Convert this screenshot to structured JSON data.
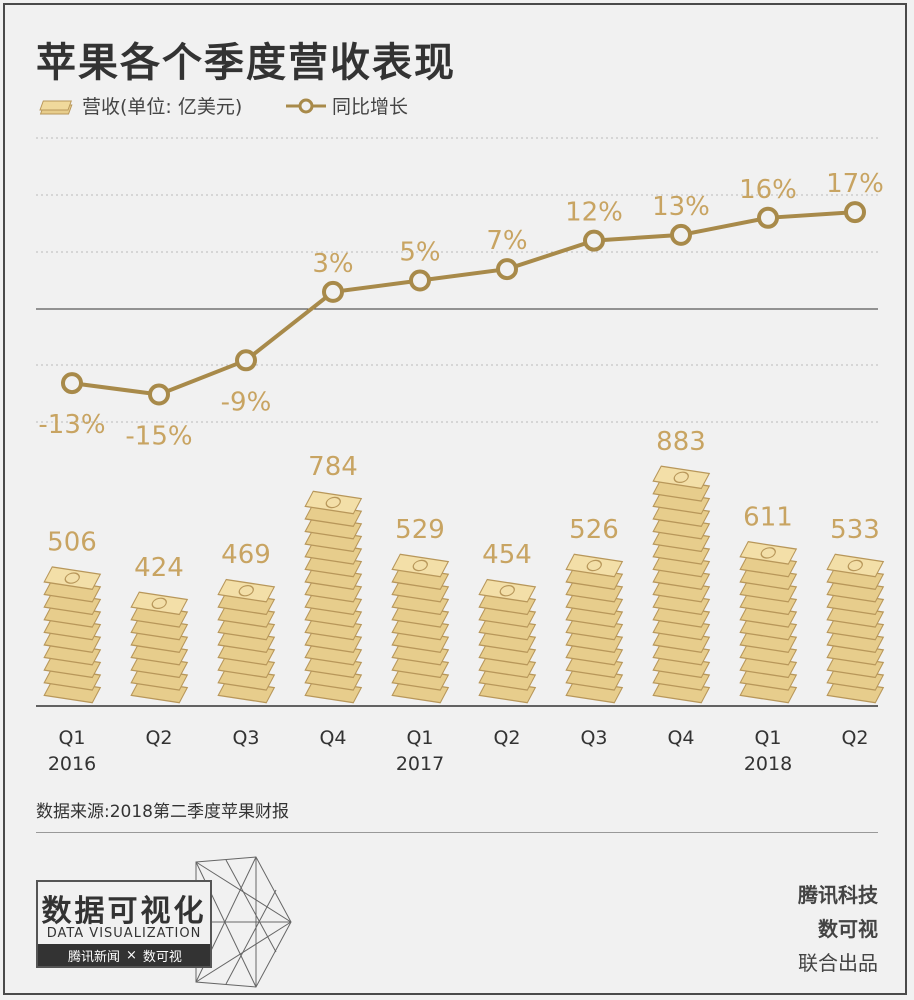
{
  "title": "苹果各个季度营收表现",
  "legend": {
    "revenue": "营收(单位: 亿美元)",
    "growth": "同比增长"
  },
  "colors": {
    "gold": "#a88a4a",
    "cash": "#e7cd8c",
    "cash_dark": "#b8975a",
    "label": "#c8a462"
  },
  "chart_data": {
    "type": "line",
    "categories": [
      "Q1 2016",
      "Q2",
      "Q3",
      "Q4",
      "Q1 2017",
      "Q2",
      "Q3",
      "Q4",
      "Q1 2018",
      "Q2"
    ],
    "series": [
      {
        "name": "营收(单位: 亿美元)",
        "kind": "stacked-cash",
        "values": [
          506,
          424,
          469,
          784,
          529,
          454,
          526,
          883,
          611,
          533
        ]
      },
      {
        "name": "同比增长",
        "kind": "line",
        "unit": "%",
        "values": [
          -13,
          -15,
          -9,
          3,
          5,
          7,
          12,
          13,
          16,
          17
        ]
      }
    ],
    "growth_labels": [
      "-13%",
      "-15%",
      "-9%",
      "3%",
      "5%",
      "7%",
      "12%",
      "13%",
      "16%",
      "17%"
    ],
    "revenue_labels": [
      "506",
      "424",
      "469",
      "784",
      "529",
      "454",
      "526",
      "883",
      "611",
      "533"
    ],
    "x_labels": [
      [
        "Q1",
        "2016"
      ],
      [
        "Q2",
        ""
      ],
      [
        "Q3",
        ""
      ],
      [
        "Q4",
        ""
      ],
      [
        "Q1",
        "2017"
      ],
      [
        "Q2",
        ""
      ],
      [
        "Q3",
        ""
      ],
      [
        "Q4",
        ""
      ],
      [
        "Q1",
        "2018"
      ],
      [
        "Q2",
        ""
      ]
    ]
  },
  "source": "数据来源:2018第二季度苹果财报",
  "credit": {
    "line1": "腾讯科技",
    "line2": "数可视",
    "line3": "联合出品"
  },
  "logo": {
    "title": "数据可视化",
    "subtitle": "DATA VISUALIZATION",
    "strip_left": "腾讯新闻",
    "strip_x": "×",
    "strip_right": "数可视"
  }
}
